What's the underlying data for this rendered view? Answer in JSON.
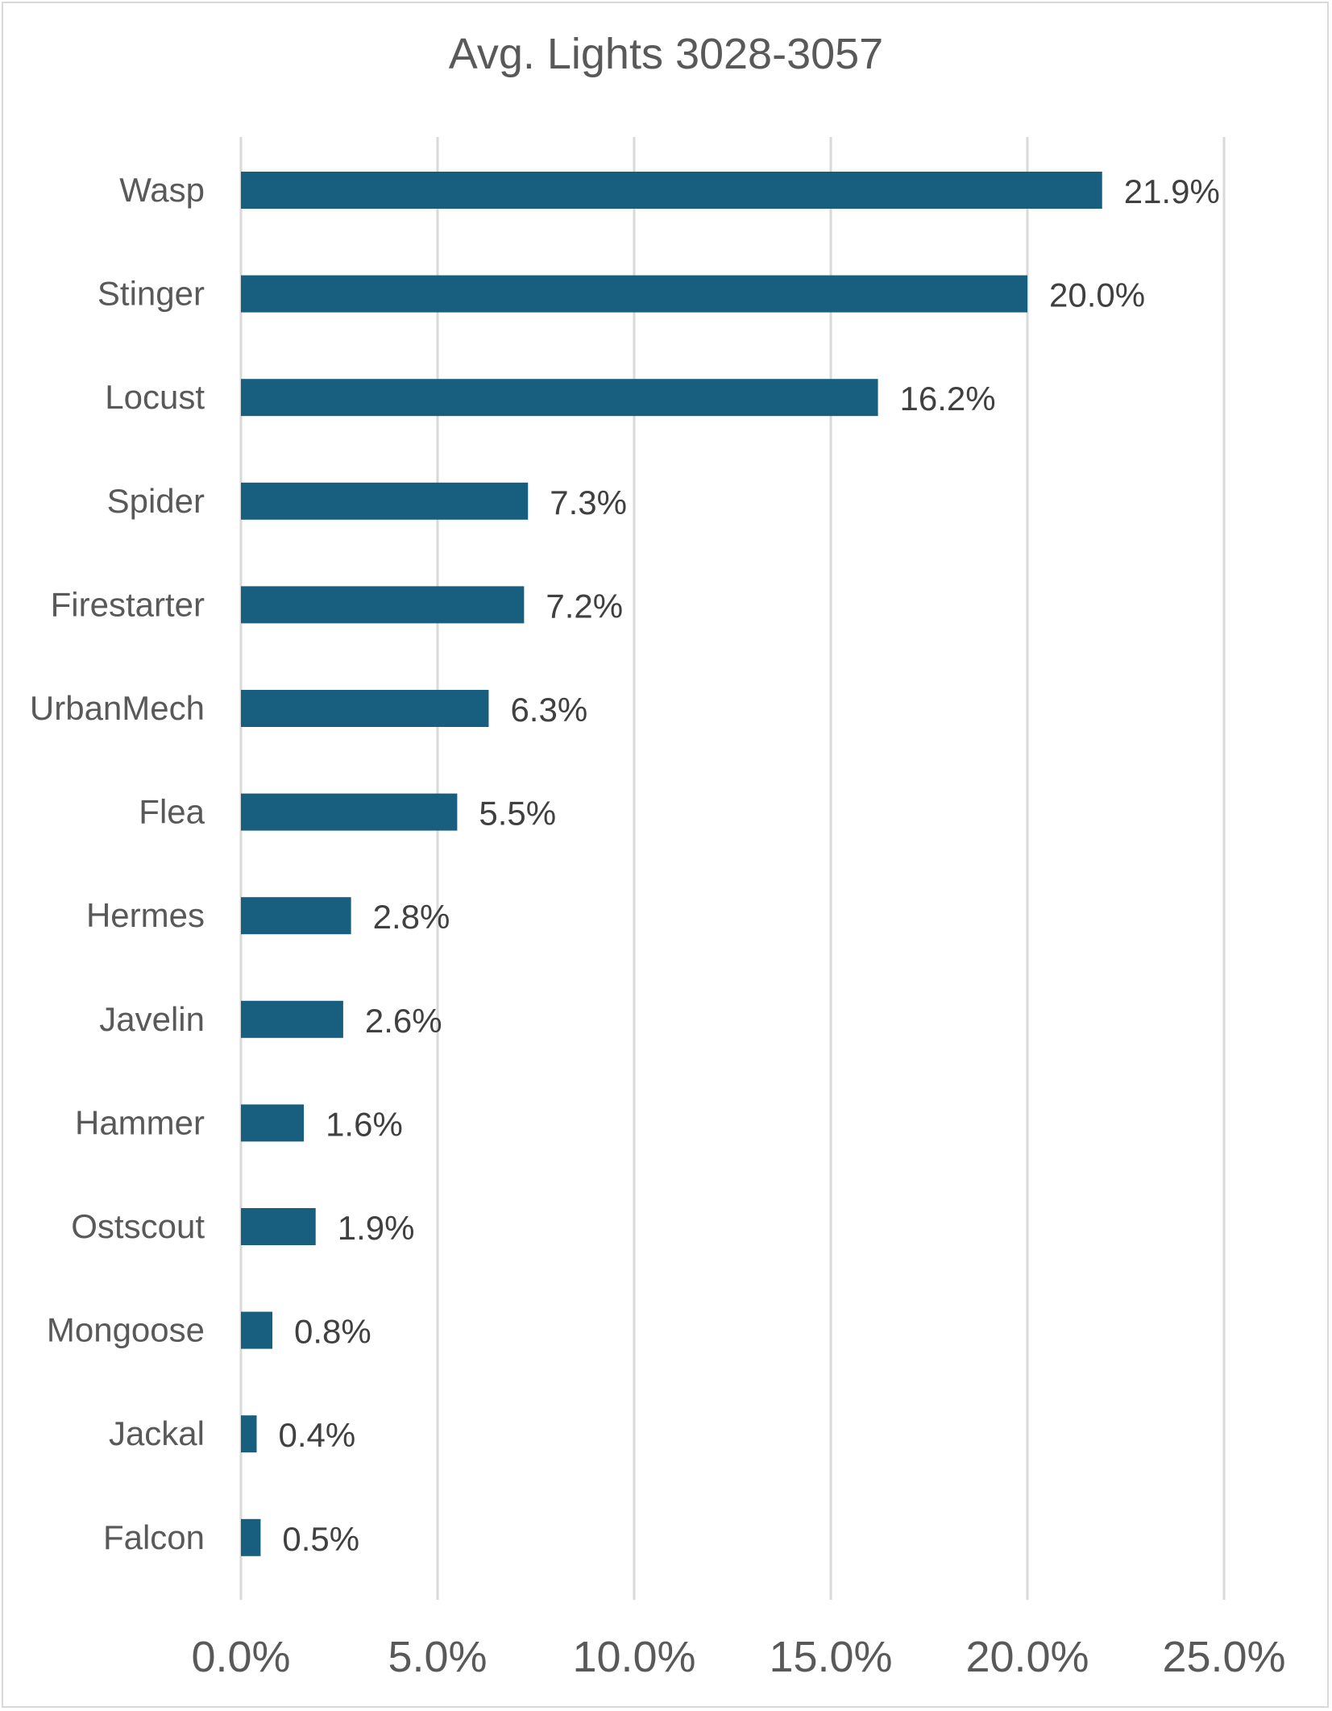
{
  "chart_data": {
    "type": "bar",
    "orientation": "horizontal",
    "title": "Avg. Lights 3028-3057",
    "categories": [
      "Wasp",
      "Stinger",
      "Locust",
      "Spider",
      "Firestarter",
      "UrbanMech",
      "Flea",
      "Hermes",
      "Javelin",
      "Hammer",
      "Ostscout",
      "Mongoose",
      "Jackal",
      "Falcon"
    ],
    "values": [
      21.9,
      20.0,
      16.2,
      7.3,
      7.2,
      6.3,
      5.5,
      2.8,
      2.6,
      1.6,
      1.9,
      0.8,
      0.4,
      0.5
    ],
    "data_labels": [
      "21.9%",
      "20.0%",
      "16.2%",
      "7.3%",
      "7.2%",
      "6.3%",
      "5.5%",
      "2.8%",
      "2.6%",
      "1.6%",
      "1.9%",
      "0.8%",
      "0.4%",
      "0.5%"
    ],
    "xlim": [
      0,
      25
    ],
    "xticks": [
      0,
      5,
      10,
      15,
      20,
      25
    ],
    "xtick_labels": [
      "0.0%",
      "5.0%",
      "10.0%",
      "15.0%",
      "20.0%",
      "25.0%"
    ],
    "xlabel": "",
    "ylabel": "",
    "grid": "vertical",
    "legend": "none",
    "bar_color": "#175e7f"
  }
}
